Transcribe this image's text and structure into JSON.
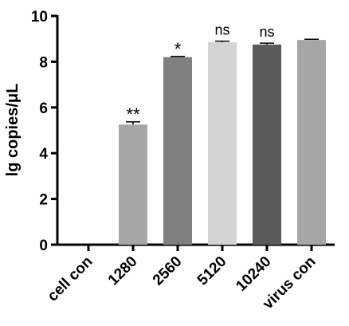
{
  "chart_data": {
    "type": "bar",
    "title": "",
    "xlabel": "",
    "ylabel": "lg copies/μL",
    "ylim": [
      0,
      10
    ],
    "yticks": [
      0,
      2,
      4,
      6,
      8,
      10
    ],
    "grid": false,
    "categories": [
      "cell con",
      "1280",
      "2560",
      "5120",
      "10240",
      "virus con"
    ],
    "values": [
      0,
      5.25,
      8.2,
      8.85,
      8.75,
      8.95
    ],
    "errors": [
      0,
      0.12,
      0.03,
      0.05,
      0.06,
      0.03
    ],
    "annotations": [
      "",
      "**",
      "*",
      "ns",
      "ns",
      ""
    ],
    "colors": [
      "#a6a6a6",
      "#a6a6a6",
      "#808080",
      "#d4d4d4",
      "#5a5a5a",
      "#a6a6a6"
    ]
  }
}
